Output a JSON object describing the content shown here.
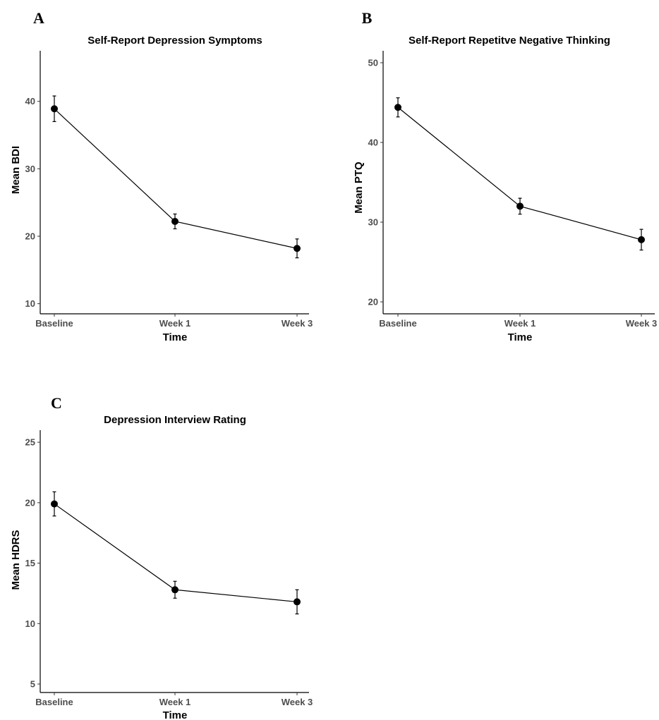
{
  "panels": [
    {
      "letter": "A"
    },
    {
      "letter": "B"
    },
    {
      "letter": "C"
    }
  ],
  "chart_data": [
    {
      "type": "line",
      "title": "Self-Report Depression Symptoms",
      "xlabel": "Time",
      "ylabel": "Mean BDI",
      "categories": [
        "Baseline",
        "Week 1",
        "Week 3"
      ],
      "values": [
        38.9,
        22.2,
        18.2
      ],
      "error_low": [
        37.0,
        21.1,
        16.8
      ],
      "error_high": [
        40.8,
        23.3,
        19.6
      ],
      "yticks": [
        10,
        20,
        30,
        40
      ],
      "ylim": [
        8.5,
        47.5
      ],
      "grid": false,
      "line_color": "#000000"
    },
    {
      "type": "line",
      "title": "Self-Report Repetitve Negative Thinking",
      "xlabel": "Time",
      "ylabel": "Mean PTQ",
      "categories": [
        "Baseline",
        "Week 1",
        "Week 3"
      ],
      "values": [
        44.4,
        32.0,
        27.8
      ],
      "error_low": [
        43.2,
        31.0,
        26.5
      ],
      "error_high": [
        45.6,
        33.0,
        29.1
      ],
      "yticks": [
        20,
        30,
        40,
        50
      ],
      "ylim": [
        18.5,
        51.5
      ],
      "grid": false,
      "line_color": "#000000"
    },
    {
      "type": "line",
      "title": "Depression Interview Rating",
      "xlabel": "Time",
      "ylabel": "Mean HDRS",
      "categories": [
        "Baseline",
        "Week 1",
        "Week 3"
      ],
      "values": [
        19.9,
        12.8,
        11.8
      ],
      "error_low": [
        18.9,
        12.1,
        10.8
      ],
      "error_high": [
        20.9,
        13.5,
        12.8
      ],
      "yticks": [
        5,
        10,
        15,
        20,
        25
      ],
      "ylim": [
        4.3,
        26.0
      ],
      "grid": false,
      "line_color": "#000000"
    }
  ]
}
